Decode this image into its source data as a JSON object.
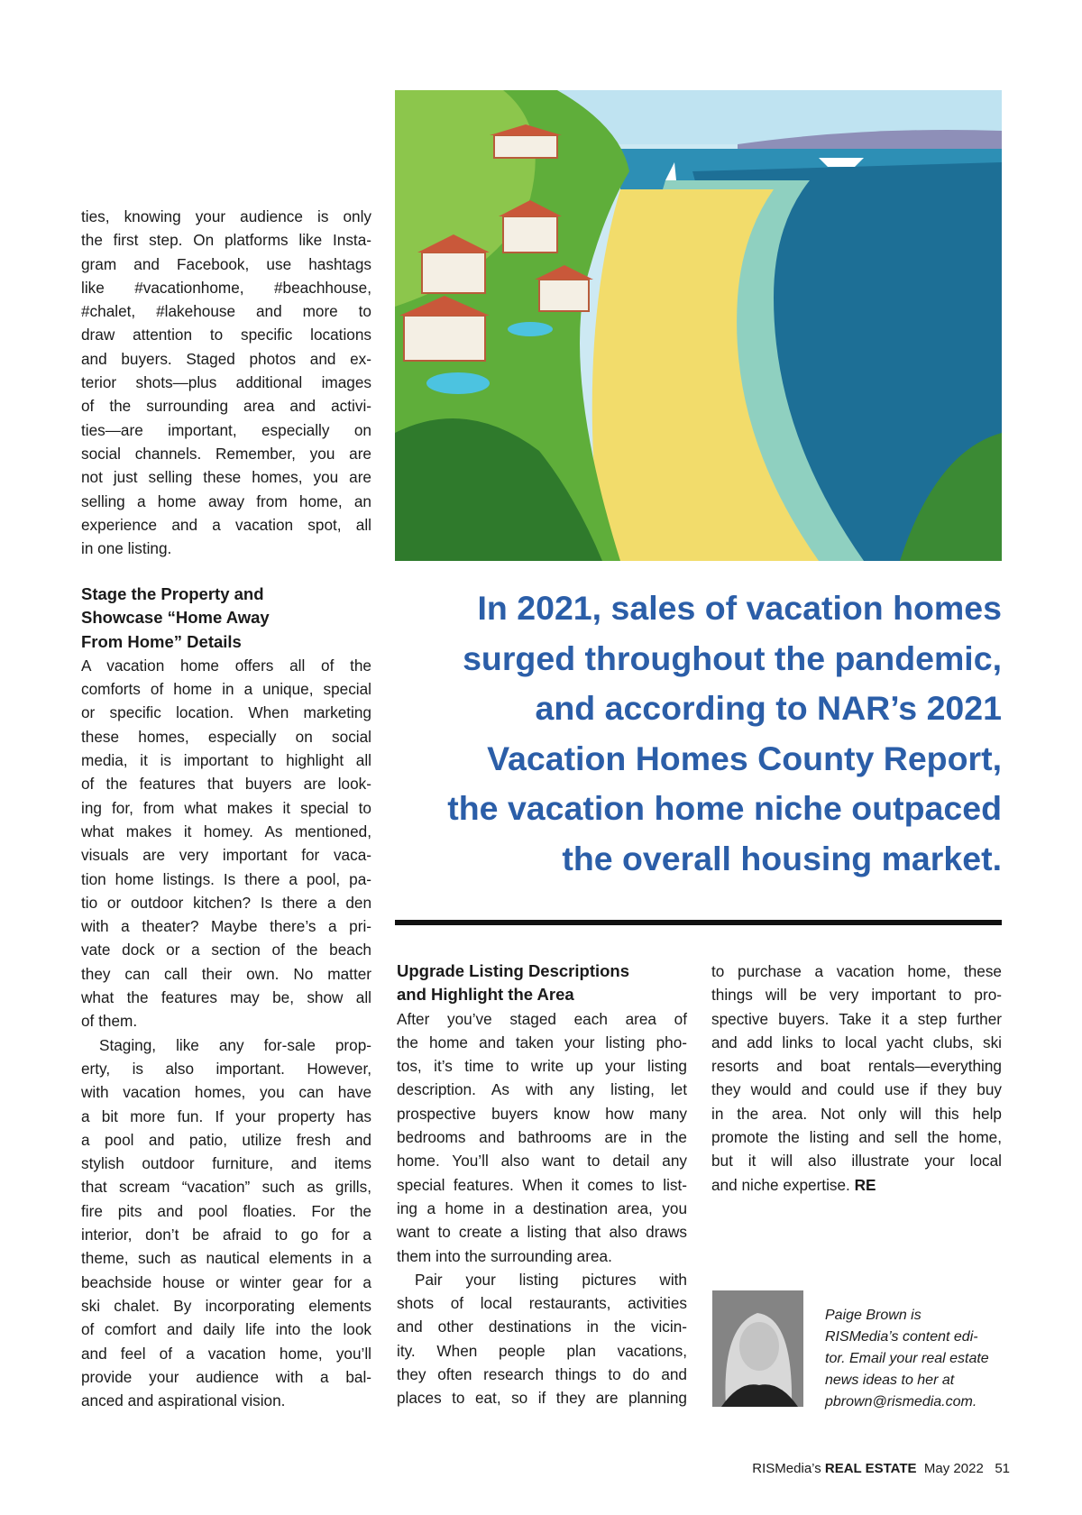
{
  "left_column": {
    "intro_lines": [
      "ties, knowing your audience is only",
      "the first step. On platforms like Insta-",
      "gram and Facebook, use hashtags",
      "like #vacationhome, #beachhouse,",
      "#chalet, #lakehouse and more to",
      "draw attention to specific locations",
      "and buyers. Staged photos and ex-",
      "terior shots—plus additional images",
      "of the surrounding area and activi-",
      "ties—are important, especially on",
      "social channels. Remember, you are",
      "not just selling these homes, you are",
      "selling a home away from home, an",
      "experience and a vacation spot, all",
      "in one listing."
    ],
    "heading_lines": [
      "Stage the Property and",
      "Showcase “Home Away",
      "From Home” Details"
    ],
    "para1_lines": [
      "A vacation home offers all of the",
      "comforts of home in a unique, special",
      "or specific location. When marketing",
      "these homes, especially on social",
      "media, it is important to highlight all",
      "of the features that buyers are look-",
      "ing for, from what makes it special to",
      "what makes it homey. As mentioned,",
      "visuals are very important for vaca-",
      "tion home listings. Is there a pool, pa-",
      "tio or outdoor kitchen? Is there a den",
      "with a theater? Maybe there’s a pri-",
      "vate dock or a section of the beach",
      "they can call their own. No matter",
      "what the features may be, show all",
      "of them."
    ],
    "para2_lines": [
      "Staging, like any for-sale prop-",
      "erty, is also important. However,",
      "with vacation homes, you can have",
      "a bit more fun. If your property has",
      "a pool and patio, utilize fresh and",
      "stylish outdoor furniture, and items",
      "that scream “vacation” such as grills,",
      "fire pits and pool floaties. For the",
      "interior, don’t be afraid to go for a",
      "theme, such as nautical elements in a",
      "beachside house or winter gear for a",
      "ski chalet. By incorporating elements",
      "of comfort and daily life into the look",
      "and feel of a vacation home, you’ll",
      "provide your audience with a bal-",
      "anced and aspirational vision."
    ]
  },
  "pull_quote_lines": [
    "In 2021, sales of vacation homes",
    "surged throughout the pandemic,",
    "and according to NAR’s 2021",
    "Vacation Homes County Report,",
    "the vacation home niche outpaced",
    "the overall housing market."
  ],
  "middle_column": {
    "heading_lines": [
      "Upgrade Listing Descriptions",
      "and Highlight the Area"
    ],
    "para1_lines": [
      "After you’ve staged each area of",
      "the home and taken your listing pho-",
      "tos, it’s time to write up your listing",
      "description. As with any listing, let",
      "prospective buyers know how many",
      "bedrooms and bathrooms are in the",
      "home. You’ll also want to detail any",
      "special features. When it comes to list-",
      "ing a home in a destination area, you",
      "want to create a listing that also draws",
      "them into the surrounding area."
    ],
    "para2_lines": [
      "Pair your listing pictures with",
      "shots of local restaurants, activities",
      "and other destinations in the vicin-",
      "ity. When people plan vacations,",
      "they often research things to do and",
      "places to eat, so if they are planning"
    ]
  },
  "right_column": {
    "lines": [
      "to purchase a vacation home, these",
      "things will be very important to pro-",
      "spective buyers. Take it a step further",
      "and add links to local yacht clubs, ski",
      "resorts and boat rentals—everything",
      "they would and could use if they buy",
      "in the area. Not only will this help",
      "promote the listing and sell the home,",
      "but it will also illustrate your local",
      "and niche expertise."
    ],
    "end_mark": "RE"
  },
  "author_bio": {
    "lines": [
      "Paige Brown is",
      "RISMedia’s content edi-",
      "tor. Email your real estate",
      "news ideas to her at",
      "pbrown@rismedia.com."
    ]
  },
  "footer": {
    "publication_prefix": "RISMedia’s",
    "publication_name": "REAL ESTATE",
    "issue": "May 2022",
    "page_number": "51"
  },
  "colors": {
    "pull_quote": "#2b5ea8",
    "rule": "#111111"
  }
}
